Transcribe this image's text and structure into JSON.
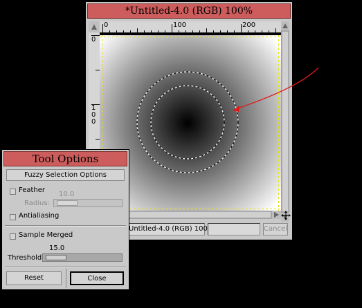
{
  "image_window": {
    "title": "*Untitled-4.0 (RGB) 100%",
    "ruler_h_ticks": [
      "0",
      "100",
      "200"
    ],
    "ruler_v_ticks": [
      "0",
      "1",
      "0",
      "0"
    ],
    "status_text": "Untitled-4.0 (RGB) 100",
    "cancel_label": "Cancel"
  },
  "tool_options": {
    "title": "Tool Options",
    "section_title": "Fuzzy Selection Options",
    "feather_label": "Feather",
    "radius_label": "Radius:",
    "radius_value": "10.0",
    "antialiasing_label": "Antialiasing",
    "sample_merged_label": "Sample Merged",
    "threshold_label": "Threshold:",
    "threshold_value": "15.0",
    "reset_label": "Reset",
    "close_label": "Close",
    "feather_checked": false,
    "antialiasing_checked": false,
    "sample_merged_checked": false
  },
  "colors": {
    "titlebar": "#cd5c5c",
    "window_bg": "#c9c9c9",
    "annotation_arrow": "#e01818",
    "guide_yellow": "#e8e800"
  }
}
